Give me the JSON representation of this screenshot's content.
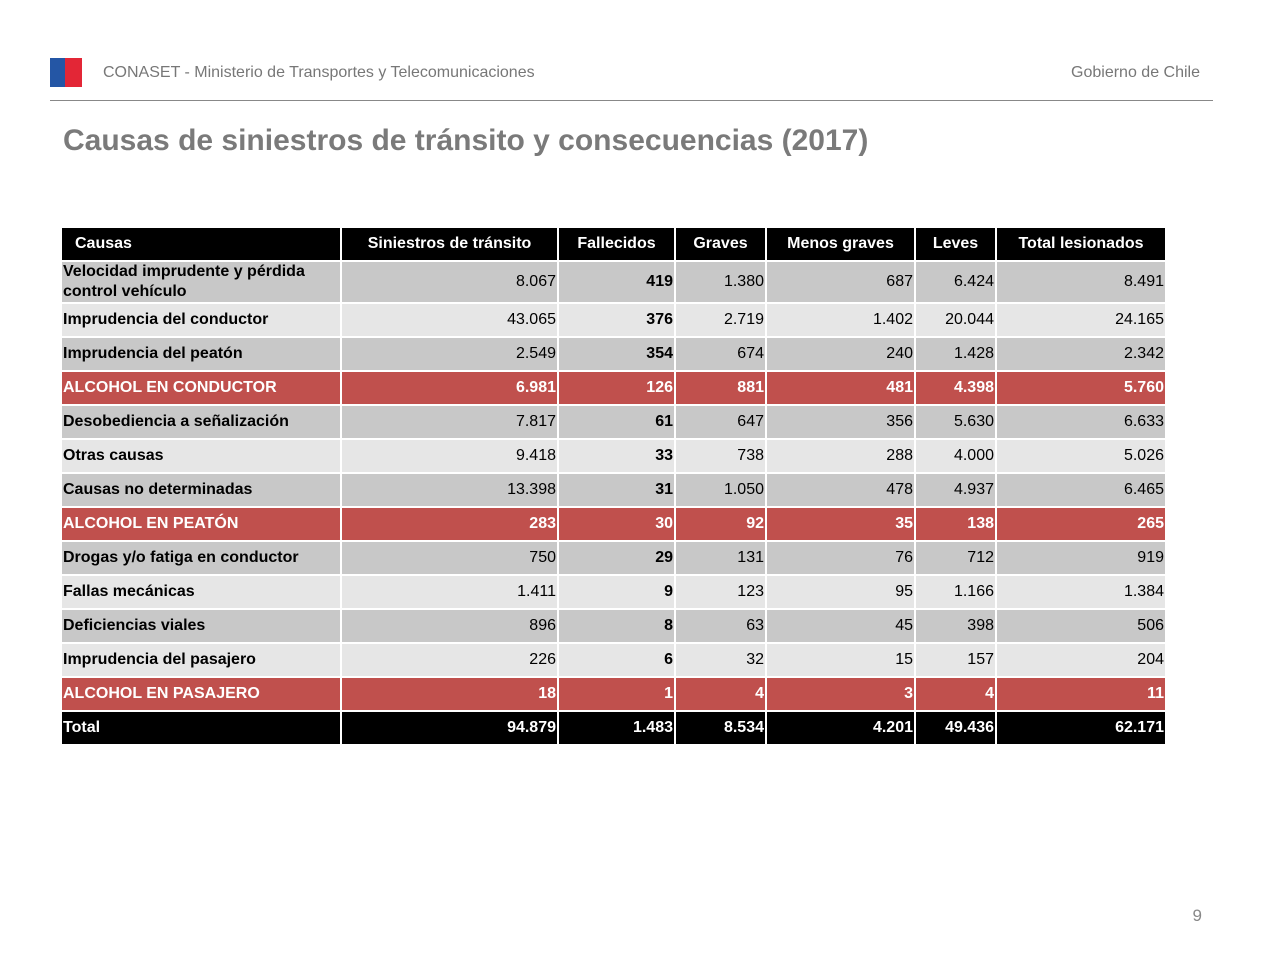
{
  "header": {
    "org": "CONASET - Ministerio de Transportes y Telecomunicaciones",
    "gov": "Gobierno de Chile",
    "flag_colors": [
      "#2456a5",
      "#e32636"
    ]
  },
  "title": "Causas de siniestros de tránsito y consecuencias (2017)",
  "table": {
    "columns": [
      "Causas",
      "Siniestros de tránsito",
      "Fallecidos",
      "Graves",
      "Menos graves",
      "Leves",
      "Total lesionados"
    ],
    "rows": [
      {
        "style": "dark tall",
        "cells": [
          "Velocidad imprudente y pérdida control vehículo",
          "8.067",
          "419",
          "1.380",
          "687",
          "6.424",
          "8.491"
        ]
      },
      {
        "style": "light",
        "cells": [
          "Imprudencia del conductor",
          "43.065",
          "376",
          "2.719",
          "1.402",
          "20.044",
          "24.165"
        ]
      },
      {
        "style": "dark",
        "cells": [
          "Imprudencia del peatón",
          "2.549",
          "354",
          "674",
          "240",
          "1.428",
          "2.342"
        ]
      },
      {
        "style": "red",
        "cells": [
          "ALCOHOL EN CONDUCTOR",
          "6.981",
          "126",
          "881",
          "481",
          "4.398",
          "5.760"
        ]
      },
      {
        "style": "dark",
        "cells": [
          "Desobediencia a señalización",
          "7.817",
          "61",
          "647",
          "356",
          "5.630",
          "6.633"
        ]
      },
      {
        "style": "light",
        "cells": [
          "Otras causas",
          "9.418",
          "33",
          "738",
          "288",
          "4.000",
          "5.026"
        ]
      },
      {
        "style": "dark",
        "cells": [
          "Causas no determinadas",
          "13.398",
          "31",
          "1.050",
          "478",
          "4.937",
          "6.465"
        ]
      },
      {
        "style": "red",
        "cells": [
          "ALCOHOL EN PEATÓN",
          "283",
          "30",
          "92",
          "35",
          "138",
          "265"
        ]
      },
      {
        "style": "dark",
        "cells": [
          "Drogas y/o fatiga en conductor",
          "750",
          "29",
          "131",
          "76",
          "712",
          "919"
        ]
      },
      {
        "style": "light",
        "cells": [
          "Fallas mecánicas",
          "1.411",
          "9",
          "123",
          "95",
          "1.166",
          "1.384"
        ]
      },
      {
        "style": "dark",
        "cells": [
          "Deficiencias viales",
          "896",
          "8",
          "63",
          "45",
          "398",
          "506"
        ]
      },
      {
        "style": "light",
        "cells": [
          "Imprudencia del pasajero",
          "226",
          "6",
          "32",
          "15",
          "157",
          "204"
        ]
      },
      {
        "style": "red",
        "cells": [
          "ALCOHOL EN PASAJERO",
          "18",
          "1",
          "4",
          "3",
          "4",
          "11"
        ]
      },
      {
        "style": "total",
        "cells": [
          "Total",
          "94.879",
          "1.483",
          "8.534",
          "4.201",
          "49.436",
          "62.171"
        ]
      }
    ],
    "highlight_color": "#c0504d"
  },
  "page_number": "9"
}
